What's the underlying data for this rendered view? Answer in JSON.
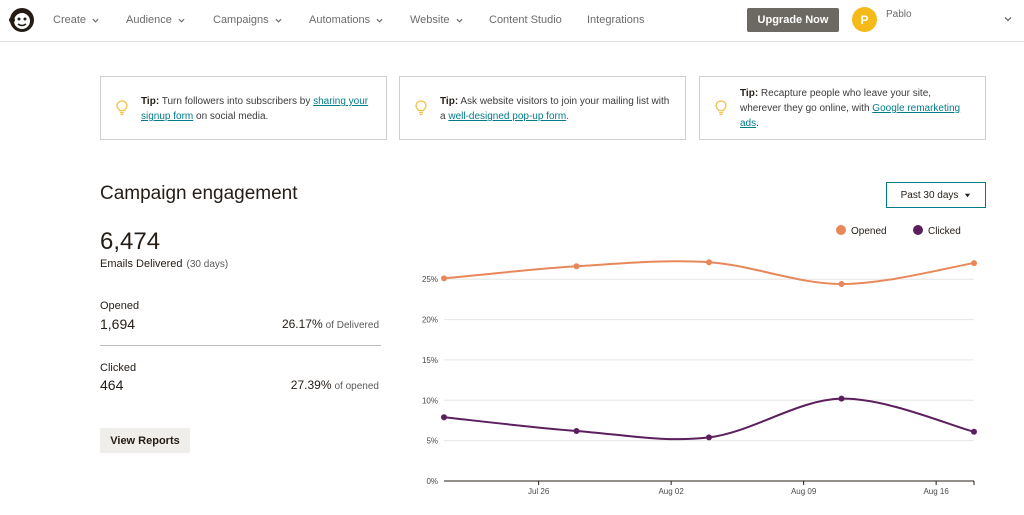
{
  "nav": {
    "items": [
      {
        "label": "Create",
        "dropdown": true
      },
      {
        "label": "Audience",
        "dropdown": true
      },
      {
        "label": "Campaigns",
        "dropdown": true
      },
      {
        "label": "Automations",
        "dropdown": true
      },
      {
        "label": "Website",
        "dropdown": true
      },
      {
        "label": "Content Studio",
        "dropdown": false
      },
      {
        "label": "Integrations",
        "dropdown": false
      }
    ],
    "upgrade_label": "Upgrade Now",
    "user_initial": "P",
    "user_name": "Pablo"
  },
  "tips": [
    {
      "label": "Tip:",
      "before": " Turn followers into subscribers by ",
      "link": "sharing your signup form",
      "after": " on social media."
    },
    {
      "label": "Tip:",
      "before": " Ask website visitors to join your mailing list with a ",
      "link": "well-designed pop-up form",
      "after": "."
    },
    {
      "label": "Tip:",
      "before": " Recapture people who leave your site, wherever they go online, with ",
      "link": "Google remarketing ads",
      "after": "."
    }
  ],
  "engagement": {
    "title": "Campaign engagement",
    "emails_delivered": "6,474",
    "delivered_label": "Emails Delivered",
    "delivered_period": "(30 days)",
    "opened_label": "Opened",
    "opened_count": "1,694",
    "opened_pct": "26.17%",
    "opened_pct_of": "of Delivered",
    "clicked_label": "Clicked",
    "clicked_count": "464",
    "clicked_pct": "27.39%",
    "clicked_pct_of": "of opened",
    "view_reports_label": "View Reports",
    "range_label": "Past 30 days"
  },
  "colors": {
    "opened": "#e8885a",
    "clicked": "#5b1f5e",
    "accent": "#007c89",
    "upgrade_bg": "#6c6862",
    "avatar_bg": "#f5b918"
  },
  "chart_data": {
    "type": "line",
    "x_ticks": [
      "Jul 26",
      "Aug 02",
      "Aug 09",
      "Aug 16"
    ],
    "y_ticks": [
      "0%",
      "5%",
      "10%",
      "15%",
      "20%",
      "25%"
    ],
    "ylim": [
      0,
      28
    ],
    "grid": true,
    "legend_position": "top-right",
    "series": [
      {
        "name": "Opened",
        "color": "#e8885a",
        "points": [
          {
            "x": "Jul 21",
            "y": 25.1
          },
          {
            "x": "Jul 28",
            "y": 26.6
          },
          {
            "x": "Aug 04",
            "y": 27.1
          },
          {
            "x": "Aug 11",
            "y": 24.4
          },
          {
            "x": "Aug 18",
            "y": 27.0
          }
        ]
      },
      {
        "name": "Clicked",
        "color": "#5b1f5e",
        "points": [
          {
            "x": "Jul 21",
            "y": 7.9
          },
          {
            "x": "Jul 28",
            "y": 6.2
          },
          {
            "x": "Aug 04",
            "y": 5.4
          },
          {
            "x": "Aug 11",
            "y": 10.2
          },
          {
            "x": "Aug 18",
            "y": 6.1
          }
        ]
      }
    ]
  }
}
